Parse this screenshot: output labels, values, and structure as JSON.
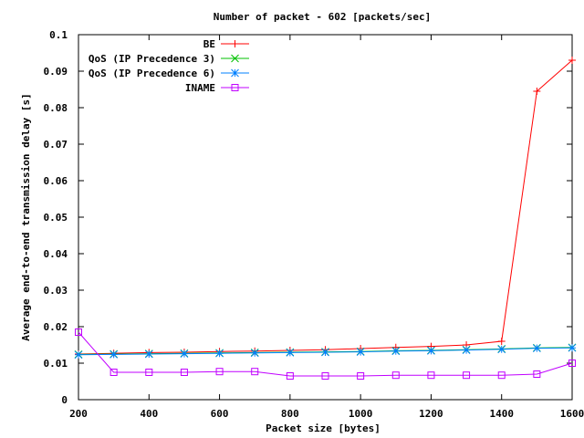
{
  "chart_data": {
    "type": "line",
    "title": "Number of packet - 602 [packets/sec]",
    "xlabel": "Packet size [bytes]",
    "ylabel": "Average end-to-end transmission delay [s]",
    "xlim": [
      200,
      1600
    ],
    "ylim": [
      0,
      0.1
    ],
    "x_ticks": [
      200,
      400,
      600,
      800,
      1000,
      1200,
      1400,
      1600
    ],
    "x_tick_labels": [
      "200",
      "400",
      "600",
      "800",
      "1000",
      "1200",
      "1400",
      "1600"
    ],
    "y_ticks": [
      0,
      0.01,
      0.02,
      0.03,
      0.04,
      0.05,
      0.06,
      0.07,
      0.08,
      0.09,
      0.1
    ],
    "y_tick_labels": [
      "0",
      "0.01",
      "0.02",
      "0.03",
      "0.04",
      "0.05",
      "0.06",
      "0.07",
      "0.08",
      "0.09",
      "0.1"
    ],
    "grid": false,
    "legend_position": "top-left",
    "x": [
      200,
      300,
      400,
      500,
      600,
      700,
      800,
      900,
      1000,
      1100,
      1200,
      1300,
      1400,
      1500,
      1600
    ],
    "series": [
      {
        "name": "BE",
        "color": "#ff0000",
        "marker": "plus",
        "values": [
          0.0125,
          0.0127,
          0.0129,
          0.013,
          0.0132,
          0.0133,
          0.0135,
          0.0137,
          0.014,
          0.0143,
          0.0146,
          0.015,
          0.016,
          0.0845,
          0.093
        ]
      },
      {
        "name": "QoS (IP Precedence 3)",
        "color": "#00c000",
        "marker": "cross",
        "values": [
          0.0124,
          0.0125,
          0.0126,
          0.0127,
          0.0128,
          0.0129,
          0.013,
          0.0131,
          0.0132,
          0.0134,
          0.0135,
          0.0137,
          0.0139,
          0.0142,
          0.0143
        ]
      },
      {
        "name": "QoS (IP Precedence 6)",
        "color": "#0080ff",
        "marker": "star",
        "values": [
          0.0123,
          0.0124,
          0.0125,
          0.0126,
          0.0127,
          0.0128,
          0.0129,
          0.013,
          0.0131,
          0.0133,
          0.0134,
          0.0136,
          0.0138,
          0.0141,
          0.0142
        ]
      },
      {
        "name": "INAME",
        "color": "#c000ff",
        "marker": "square",
        "values": [
          0.0185,
          0.0075,
          0.0075,
          0.0075,
          0.0077,
          0.0077,
          0.0065,
          0.0065,
          0.0065,
          0.0067,
          0.0067,
          0.0067,
          0.0067,
          0.007,
          0.01
        ]
      }
    ]
  }
}
